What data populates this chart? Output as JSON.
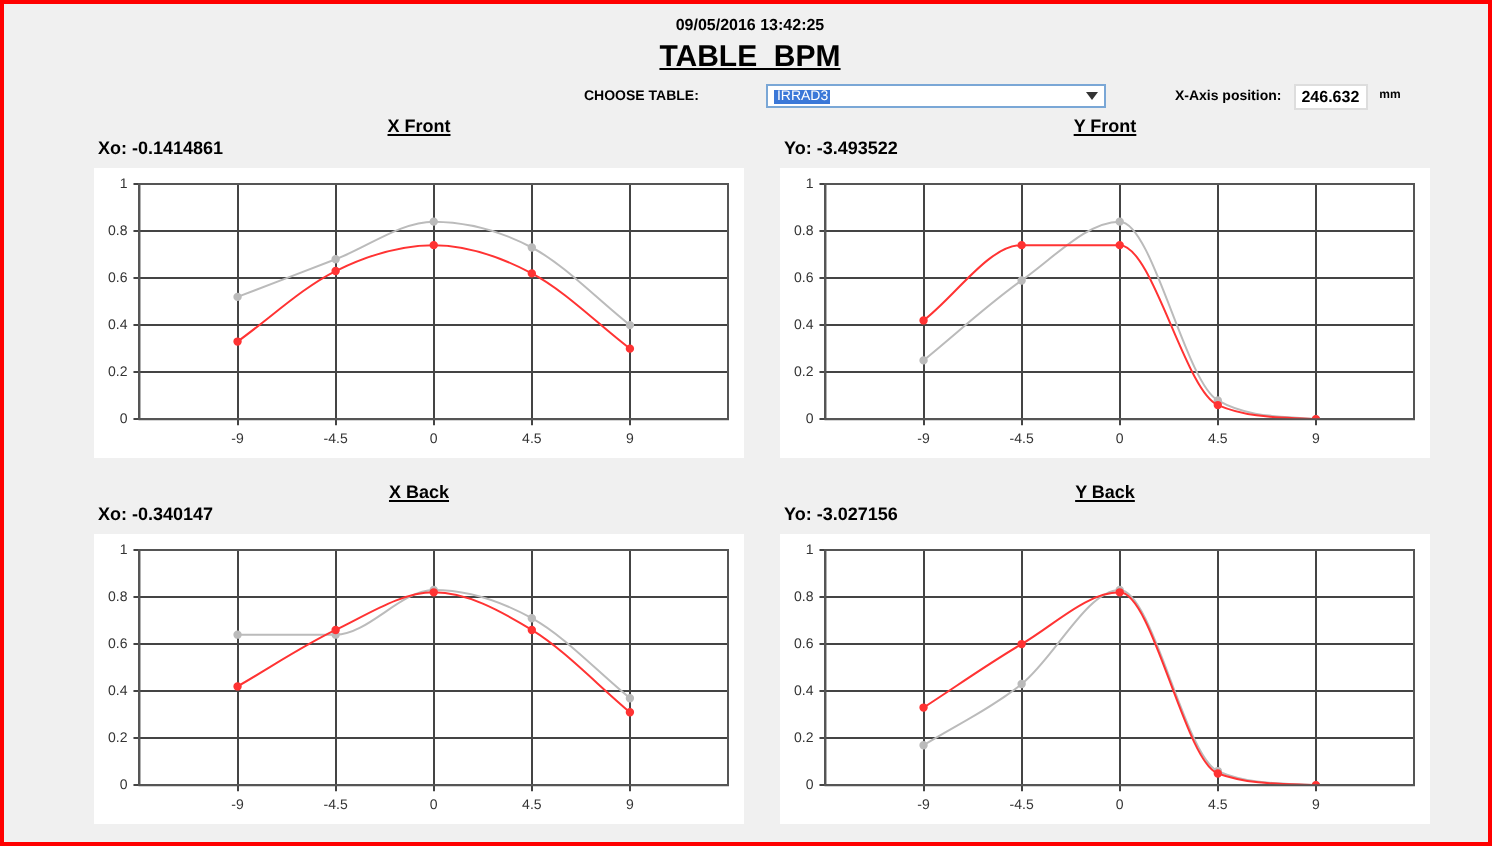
{
  "chart_data": [
    {
      "type": "other",
      "title": "TABLE  BPM",
      "subtitle": "09/05/2016 13:42:25",
      "annotations": [
        "CHOOSE TABLE:",
        "IRRAD3",
        "X-Axis position:",
        "246.632",
        "mm"
      ]
    },
    {
      "type": "line",
      "title": "X Front",
      "annotations": [
        "Xo: -0.1414861"
      ],
      "x": [
        -9,
        -4.5,
        0,
        4.5,
        9
      ],
      "xlim": [
        -13.5,
        13.5
      ],
      "xticks": [
        -9,
        -4.5,
        0,
        4.5,
        9
      ],
      "ylim": [
        0,
        1
      ],
      "yticks": [
        0,
        0.2,
        0.4,
        0.6,
        0.8,
        1
      ],
      "grid": true,
      "marker": "circle",
      "line_style": "solid",
      "series": [
        {
          "color": "#bbbbbb",
          "values": [
            0.52,
            0.68,
            0.84,
            0.73,
            0.4
          ]
        },
        {
          "color": "#ff3333",
          "values": [
            0.33,
            0.63,
            0.74,
            0.62,
            0.3
          ]
        }
      ]
    },
    {
      "type": "line",
      "title": "Y Front",
      "annotations": [
        "Yo: -3.493522"
      ],
      "x": [
        -9,
        -4.5,
        0,
        4.5,
        9
      ],
      "xlim": [
        -13.5,
        13.5
      ],
      "xticks": [
        -9,
        -4.5,
        0,
        4.5,
        9
      ],
      "ylim": [
        0,
        1
      ],
      "yticks": [
        0,
        0.2,
        0.4,
        0.6,
        0.8,
        1
      ],
      "grid": true,
      "marker": "circle",
      "line_style": "solid",
      "series": [
        {
          "color": "#bbbbbb",
          "values": [
            0.25,
            0.59,
            0.84,
            0.08,
            0
          ]
        },
        {
          "color": "#ff3333",
          "values": [
            0.42,
            0.74,
            0.74,
            0.06,
            0
          ]
        }
      ]
    },
    {
      "type": "line",
      "title": "X Back",
      "annotations": [
        "Xo: -0.340147"
      ],
      "x": [
        -9,
        -4.5,
        0,
        4.5,
        9
      ],
      "xlim": [
        -13.5,
        13.5
      ],
      "xticks": [
        -9,
        -4.5,
        0,
        4.5,
        9
      ],
      "ylim": [
        0,
        1
      ],
      "yticks": [
        0,
        0.2,
        0.4,
        0.6,
        0.8,
        1
      ],
      "grid": true,
      "marker": "circle",
      "line_style": "solid",
      "series": [
        {
          "color": "#bbbbbb",
          "values": [
            0.64,
            0.64,
            0.83,
            0.71,
            0.37
          ]
        },
        {
          "color": "#ff3333",
          "values": [
            0.42,
            0.66,
            0.82,
            0.66,
            0.31
          ]
        }
      ]
    },
    {
      "type": "line",
      "title": "Y Back",
      "annotations": [
        "Yo: -3.027156"
      ],
      "x": [
        -9,
        -4.5,
        0,
        4.5,
        9
      ],
      "xlim": [
        -13.5,
        13.5
      ],
      "xticks": [
        -9,
        -4.5,
        0,
        4.5,
        9
      ],
      "ylim": [
        0,
        1
      ],
      "yticks": [
        0,
        0.2,
        0.4,
        0.6,
        0.8,
        1
      ],
      "grid": true,
      "marker": "circle",
      "line_style": "solid",
      "series": [
        {
          "color": "#bbbbbb",
          "values": [
            0.17,
            0.43,
            0.83,
            0.06,
            0
          ]
        },
        {
          "color": "#ff3333",
          "values": [
            0.33,
            0.6,
            0.82,
            0.05,
            0
          ]
        }
      ]
    }
  ]
}
